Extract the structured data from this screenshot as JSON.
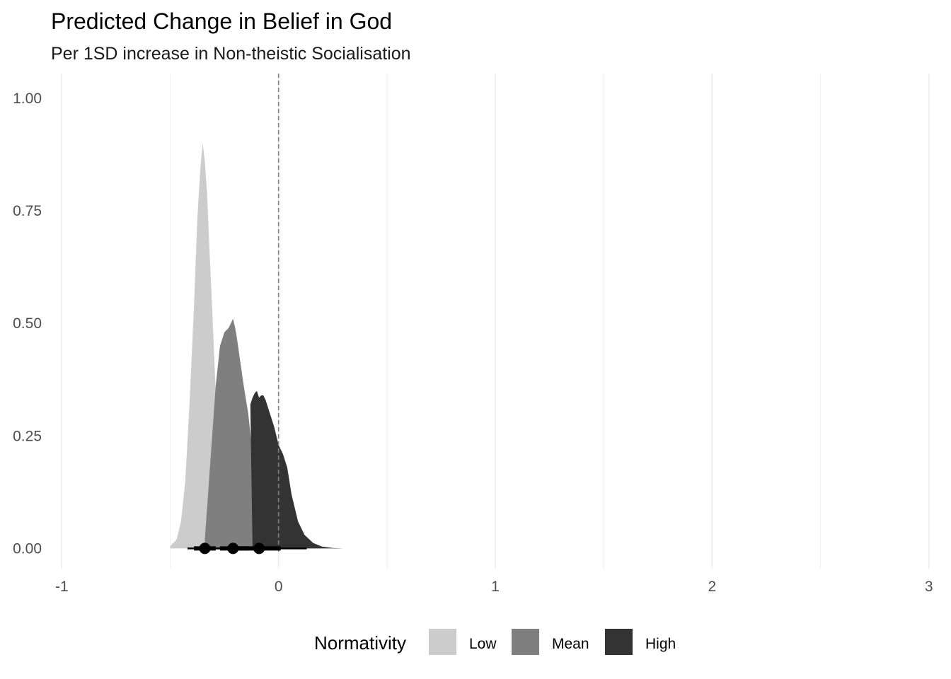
{
  "chart_data": {
    "type": "area",
    "title": "Predicted Change in Belief in God",
    "subtitle": "Per 1SD increase in Non-theistic Socialisation",
    "xlabel": "",
    "ylabel": "",
    "xlim": [
      -1.05,
      3.05
    ],
    "ylim": [
      -0.045,
      1.055
    ],
    "x_ticks": [
      -1,
      0,
      1,
      2,
      3
    ],
    "x_tick_labels": [
      "-1",
      "0",
      "1",
      "2",
      "3"
    ],
    "y_ticks": [
      0,
      0.25,
      0.5,
      0.75,
      1.0
    ],
    "y_tick_labels": [
      "0.00",
      "0.25",
      "0.50",
      "0.75",
      "1.00"
    ],
    "x_minor_gridlines": [
      -0.5,
      0.5,
      1.5,
      2.5
    ],
    "grid": true,
    "reference_line": {
      "x": 0,
      "style": "dashed",
      "color": "#808080"
    },
    "legend": {
      "title": "Normativity",
      "position": "bottom",
      "items": [
        "Low",
        "Mean",
        "High"
      ]
    },
    "series": [
      {
        "name": "Low",
        "color": "#cccccc",
        "points": [
          [
            -0.5,
            0.005
          ],
          [
            -0.47,
            0.02
          ],
          [
            -0.45,
            0.06
          ],
          [
            -0.43,
            0.15
          ],
          [
            -0.41,
            0.33
          ],
          [
            -0.39,
            0.54
          ],
          [
            -0.375,
            0.73
          ],
          [
            -0.36,
            0.85
          ],
          [
            -0.35,
            0.9
          ],
          [
            -0.34,
            0.86
          ],
          [
            -0.33,
            0.79
          ],
          [
            -0.32,
            0.68
          ],
          [
            -0.305,
            0.52
          ],
          [
            -0.29,
            0.35
          ],
          [
            -0.275,
            0.2
          ],
          [
            -0.26,
            0.09
          ],
          [
            -0.24,
            0.03
          ],
          [
            -0.22,
            0.008
          ],
          [
            -0.2,
            0.0
          ]
        ],
        "point_estimate": -0.34,
        "interval_inner": [
          -0.39,
          -0.29
        ],
        "interval_outer": [
          -0.42,
          -0.27
        ]
      },
      {
        "name": "Mean",
        "color": "#7f7f7f",
        "points": [
          [
            -0.34,
            0.02
          ],
          [
            -0.29,
            0.36
          ],
          [
            -0.27,
            0.45
          ],
          [
            -0.25,
            0.48
          ],
          [
            -0.23,
            0.49
          ],
          [
            -0.21,
            0.51
          ],
          [
            -0.2,
            0.49
          ],
          [
            -0.19,
            0.46
          ],
          [
            -0.175,
            0.41
          ],
          [
            -0.16,
            0.36
          ],
          [
            -0.14,
            0.3
          ],
          [
            -0.12,
            0.21
          ],
          [
            -0.1,
            0.13
          ],
          [
            -0.08,
            0.07
          ],
          [
            -0.06,
            0.03
          ],
          [
            -0.04,
            0.01
          ],
          [
            -0.02,
            0.0
          ]
        ],
        "point_estimate": -0.21,
        "interval_inner": [
          -0.27,
          -0.14
        ],
        "interval_outer": [
          -0.33,
          -0.06
        ]
      },
      {
        "name": "High",
        "color": "#333333",
        "points": [
          [
            -0.12,
            0.0
          ],
          [
            -0.13,
            0.32
          ],
          [
            -0.12,
            0.335
          ],
          [
            -0.11,
            0.345
          ],
          [
            -0.1,
            0.35
          ],
          [
            -0.09,
            0.335
          ],
          [
            -0.08,
            0.34
          ],
          [
            -0.07,
            0.34
          ],
          [
            -0.06,
            0.33
          ],
          [
            -0.04,
            0.3
          ],
          [
            -0.02,
            0.27
          ],
          [
            0.0,
            0.23
          ],
          [
            0.02,
            0.21
          ],
          [
            0.04,
            0.18
          ],
          [
            0.06,
            0.12
          ],
          [
            0.09,
            0.06
          ],
          [
            0.12,
            0.03
          ],
          [
            0.16,
            0.012
          ],
          [
            0.2,
            0.004
          ],
          [
            0.25,
            0.001
          ],
          [
            0.3,
            0.0
          ]
        ],
        "point_estimate": -0.09,
        "interval_inner": [
          -0.19,
          0.01
        ],
        "interval_outer": [
          -0.28,
          0.13
        ]
      }
    ]
  }
}
